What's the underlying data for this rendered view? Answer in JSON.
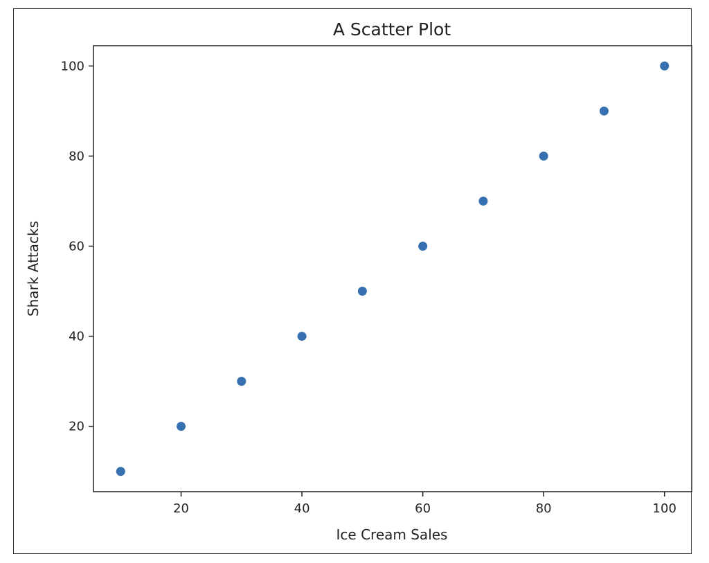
{
  "chart_data": {
    "type": "scatter",
    "title": "A Scatter Plot",
    "xlabel": "Ice Cream Sales",
    "ylabel": "Shark Attacks",
    "x": [
      10,
      20,
      30,
      40,
      50,
      60,
      70,
      80,
      90,
      100
    ],
    "y": [
      10,
      20,
      30,
      40,
      50,
      60,
      70,
      80,
      90,
      100
    ],
    "xlim": [
      5.5,
      104.5
    ],
    "ylim": [
      5.5,
      104.5
    ],
    "xticks": [
      20,
      40,
      60,
      80,
      100
    ],
    "yticks": [
      20,
      40,
      60,
      80,
      100
    ],
    "xtick_labels": [
      "20",
      "40",
      "60",
      "80",
      "100"
    ],
    "ytick_labels": [
      "20",
      "40",
      "60",
      "80",
      "100"
    ],
    "grid": false,
    "colors": {
      "marker": "#3670b0",
      "axes": "#222222"
    }
  }
}
